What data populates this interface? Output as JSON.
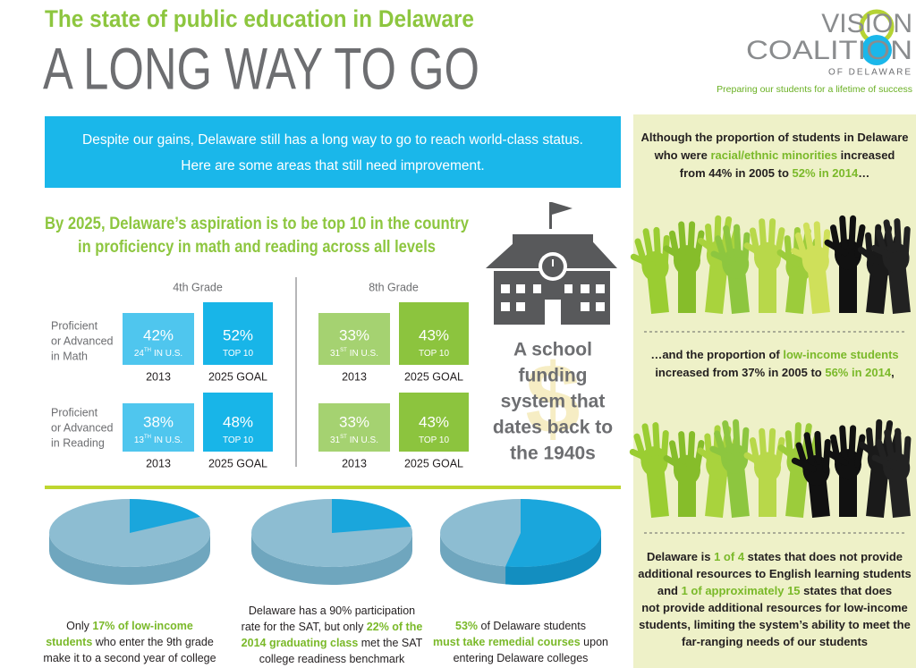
{
  "header": {
    "subtitle": "The state of public education in Delaware",
    "title": "A LONG WAY TO GO"
  },
  "logo": {
    "line1": "VISION",
    "line2": "COALITION",
    "line3": "OF DELAWARE",
    "tagline": "Preparing our students for a lifetime of success"
  },
  "banner": {
    "line1": "Despite our gains, Delaware still has a long way to go to reach world-class status.",
    "line2": "Here are some areas that still need improvement."
  },
  "aspiration": {
    "line1": "By 2025, Delaware’s aspiration is to be top 10 in the country",
    "line2": "in proficiency in math and reading across all levels"
  },
  "row_labels": [
    [
      "Proficient",
      "or Advanced",
      "in Math"
    ],
    [
      "Proficient",
      "or Advanced",
      "in Reading"
    ]
  ],
  "grades": [
    {
      "title": "4th Grade",
      "cells": [
        {
          "current": {
            "value": "42%",
            "rank": "24",
            "suffix": "TH",
            "note": "IN U.S.",
            "year": "2013"
          },
          "goal": {
            "value": "52%",
            "note": "TOP 10",
            "year": "2025 GOAL"
          }
        },
        {
          "current": {
            "value": "38%",
            "rank": "13",
            "suffix": "TH",
            "note": "IN U.S.",
            "year": "2013"
          },
          "goal": {
            "value": "48%",
            "note": "TOP 10",
            "year": "2025 GOAL"
          }
        }
      ]
    },
    {
      "title": "8th Grade",
      "cells": [
        {
          "current": {
            "value": "33%",
            "rank": "31",
            "suffix": "ST",
            "note": "IN U.S.",
            "year": "2013"
          },
          "goal": {
            "value": "43%",
            "note": "TOP 10",
            "year": "2025 GOAL"
          }
        },
        {
          "current": {
            "value": "33%",
            "rank": "31",
            "suffix": "ST",
            "note": "IN U.S.",
            "year": "2013"
          },
          "goal": {
            "value": "43%",
            "note": "TOP 10",
            "year": "2025 GOAL"
          }
        }
      ]
    }
  ],
  "funding": {
    "icon": "$",
    "lines": [
      "A school",
      "funding",
      "system that",
      "dates back to",
      "the 1940s"
    ]
  },
  "pies": [
    {
      "value": 17,
      "caption": [
        [
          {
            "text": "Only "
          },
          {
            "text": "17% of low-income",
            "highlight": true
          }
        ],
        [
          {
            "text": "students",
            "highlight": true
          },
          {
            "text": " who enter the 9th grade"
          }
        ],
        [
          {
            "text": "make it to a second year of college"
          }
        ]
      ]
    },
    {
      "value": 22,
      "caption": [
        [
          {
            "text": "Delaware has a 90% participation"
          }
        ],
        [
          {
            "text": "rate for the SAT, but only "
          },
          {
            "text": "22% of the",
            "highlight": true
          }
        ],
        [
          {
            "text": "2014 graduating class",
            "highlight": true
          },
          {
            "text": " met the SAT"
          }
        ],
        [
          {
            "text": "college readiness benchmark"
          }
        ]
      ]
    },
    {
      "value": 53,
      "caption": [
        [
          {
            "text": "53%",
            "highlight": true
          },
          {
            "text": " of Delaware students"
          }
        ],
        [
          {
            "text": "must take remedial courses",
            "highlight": true
          },
          {
            "text": " upon"
          }
        ],
        [
          {
            "text": "entering Delaware colleges"
          }
        ]
      ]
    }
  ],
  "side": {
    "para1": [
      [
        {
          "text": "Although the proportion of students in Delaware"
        }
      ],
      [
        {
          "text": "who were "
        },
        {
          "text": "racial/ethnic minorities",
          "highlight": true
        },
        {
          "text": " increased"
        }
      ],
      [
        {
          "text": "from 44% in 2005 to "
        },
        {
          "text": "52% in 2014",
          "highlight": true
        },
        {
          "text": "…"
        }
      ]
    ],
    "para2": [
      [
        {
          "text": "…and the proportion of "
        },
        {
          "text": "low-income students",
          "highlight": true
        }
      ],
      [
        {
          "text": "increased from 37% in 2005 to "
        },
        {
          "text": "56% in 2014",
          "highlight": true
        },
        {
          "text": ","
        }
      ]
    ],
    "para3": [
      [
        {
          "text": "Delaware is "
        },
        {
          "text": "1 of 4",
          "highlight": true
        },
        {
          "text": " states that does not provide"
        }
      ],
      [
        {
          "text": "additional resources to English learning students"
        }
      ],
      [
        {
          "text": "and "
        },
        {
          "text": "1 of approximately 15",
          "highlight": true
        },
        {
          "text": " states that does"
        }
      ],
      [
        {
          "text": "not provide additional resources for low-income"
        }
      ],
      [
        {
          "text": "students, limiting the system’s ability to meet the"
        }
      ],
      [
        {
          "text": "far-ranging needs of our students"
        }
      ]
    ]
  }
}
